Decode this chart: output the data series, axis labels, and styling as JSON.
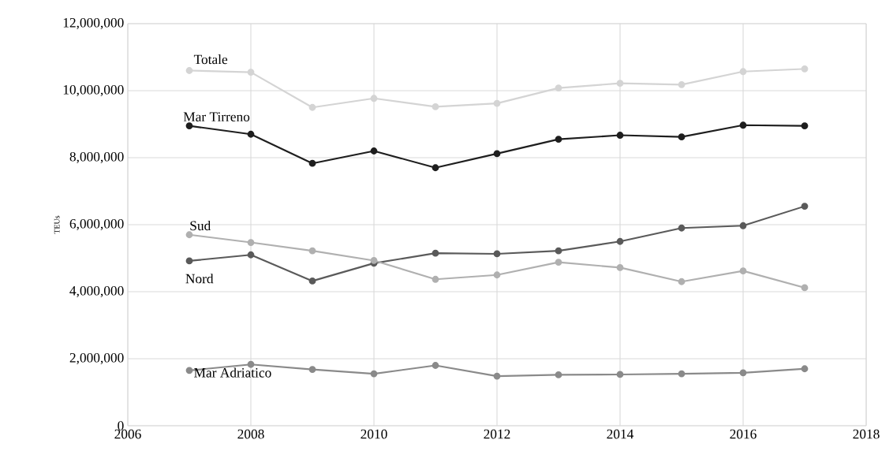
{
  "chart_data": {
    "type": "line",
    "ylabel": "TEUs",
    "x": [
      2007,
      2008,
      2009,
      2010,
      2011,
      2012,
      2013,
      2014,
      2015,
      2016,
      2017
    ],
    "xlim": [
      2006,
      2018
    ],
    "xticks": [
      2006,
      2008,
      2010,
      2012,
      2014,
      2016,
      2018
    ],
    "ylim": [
      0,
      12000000
    ],
    "yticks": [
      {
        "value": 0,
        "label": "0"
      },
      {
        "value": 2000000,
        "label": "2,000,000"
      },
      {
        "value": 4000000,
        "label": "4,000,000"
      },
      {
        "value": 6000000,
        "label": "6,000,000"
      },
      {
        "value": 8000000,
        "label": "8,000,000"
      },
      {
        "value": 10000000,
        "label": "10,000,000"
      },
      {
        "value": 12000000,
        "label": "12,000,000"
      }
    ],
    "grid": true,
    "marker": "circle",
    "line_style": "solid",
    "series": [
      {
        "name": "Totale",
        "color": "#d4d4d4",
        "values": [
          10600000,
          10550000,
          9500000,
          9770000,
          9520000,
          9620000,
          10080000,
          10220000,
          10180000,
          10570000,
          10650000
        ]
      },
      {
        "name": "Mar Tirreno",
        "color": "#1e1e1e",
        "values": [
          8950000,
          8700000,
          7830000,
          8200000,
          7700000,
          8120000,
          8550000,
          8670000,
          8620000,
          8970000,
          8950000
        ]
      },
      {
        "name": "Sud",
        "color": "#b0b0b0",
        "values": [
          5700000,
          5470000,
          5220000,
          4930000,
          4370000,
          4500000,
          4880000,
          4720000,
          4300000,
          4620000,
          4120000
        ]
      },
      {
        "name": "Nord",
        "color": "#5a5a5a",
        "values": [
          4920000,
          5100000,
          4320000,
          4850000,
          5150000,
          5130000,
          5220000,
          5500000,
          5900000,
          5970000,
          6550000
        ]
      },
      {
        "name": "Mar Adriatico",
        "color": "#8a8a8a",
        "values": [
          1650000,
          1830000,
          1680000,
          1550000,
          1800000,
          1480000,
          1520000,
          1530000,
          1550000,
          1580000,
          1700000
        ]
      }
    ]
  }
}
